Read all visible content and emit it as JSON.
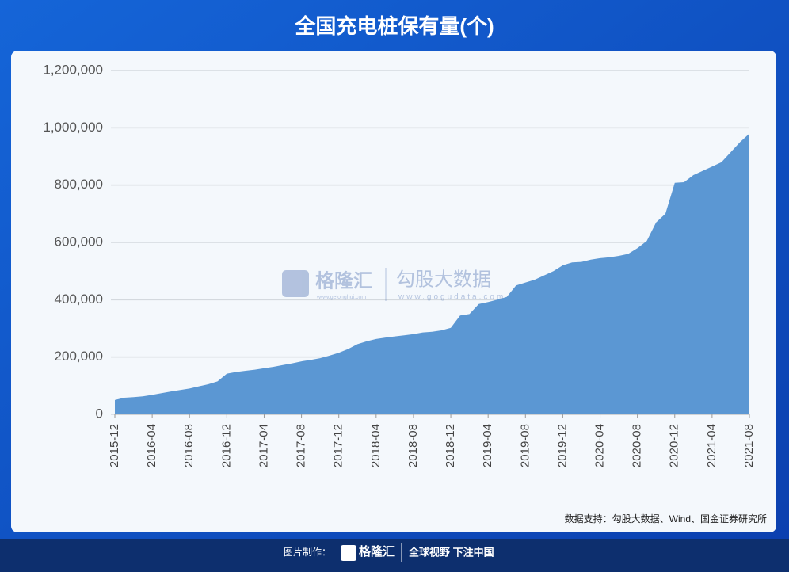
{
  "chart_data": {
    "type": "area",
    "title": "全国充电桩保有量(个)",
    "categories": [
      "2015-12",
      null,
      null,
      null,
      "2016-04",
      null,
      null,
      null,
      "2016-08",
      null,
      null,
      null,
      "2016-12",
      null,
      null,
      null,
      "2017-04",
      null,
      null,
      null,
      "2017-08",
      null,
      null,
      null,
      "2017-12",
      null,
      null,
      null,
      "2018-04",
      null,
      null,
      null,
      "2018-08",
      null,
      null,
      null,
      "2018-12",
      null,
      null,
      null,
      "2019-04",
      null,
      null,
      null,
      "2019-08",
      null,
      null,
      null,
      "2019-12",
      null,
      null,
      null,
      "2020-04",
      null,
      null,
      null,
      "2020-08",
      null,
      null,
      null,
      "2020-12",
      null,
      null,
      null,
      "2021-04",
      null,
      null,
      null,
      "2021-08"
    ],
    "values": [
      50000,
      58000,
      60000,
      63000,
      68000,
      74000,
      80000,
      85000,
      90000,
      98000,
      105000,
      115000,
      142000,
      148000,
      152000,
      156000,
      161000,
      166000,
      172000,
      178000,
      185000,
      190000,
      196000,
      205000,
      215000,
      228000,
      245000,
      255000,
      263000,
      268000,
      272000,
      276000,
      280000,
      286000,
      288000,
      293000,
      302000,
      345000,
      350000,
      385000,
      392000,
      400000,
      410000,
      450000,
      460000,
      470000,
      485000,
      500000,
      520000,
      530000,
      532000,
      540000,
      545000,
      548000,
      553000,
      560000,
      580000,
      605000,
      670000,
      700000,
      808000,
      810000,
      835000,
      850000,
      865000,
      880000,
      915000,
      950000,
      980000
    ],
    "color": "#5b97d3",
    "ylim": [
      0,
      1200000
    ],
    "yticks": [
      0,
      {
        "value": 200000,
        "label": "200,000"
      },
      {
        "value": 400000,
        "label": "400,000"
      },
      {
        "value": 600000,
        "label": "600,000"
      },
      {
        "value": 800000,
        "label": "800,000"
      },
      {
        "value": 1000000,
        "label": "1,000,000"
      },
      {
        "value": 1200000,
        "label": "1,200,000"
      }
    ],
    "grid": true,
    "source": "数据支持：勾股大数据、Wind、国金证券研究所"
  },
  "watermark": {
    "brand": "格隆汇",
    "brand_url": "www.gelonghui.com",
    "partner": "勾股大数据",
    "partner_url": "www.gogudata.com"
  },
  "footer": {
    "made_by": "图片制作：",
    "brand": "格隆汇",
    "slogan": "全球视野 下注中国"
  }
}
